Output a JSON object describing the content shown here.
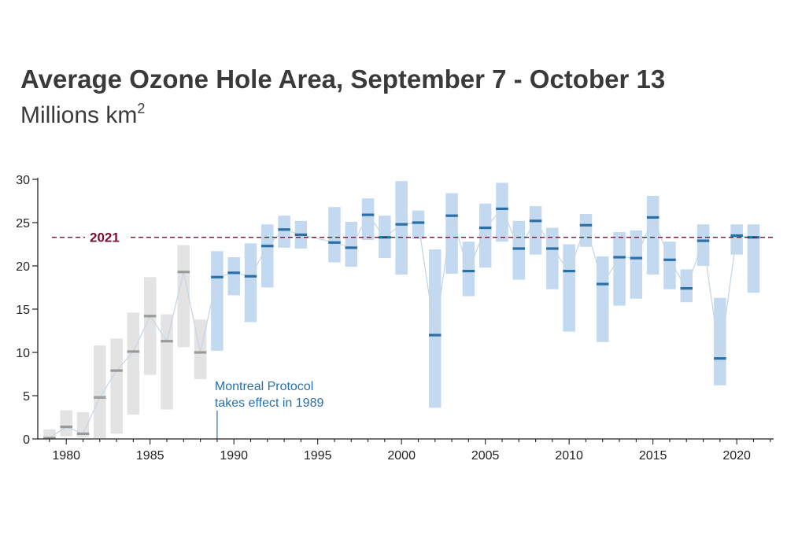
{
  "title": "Average Ozone Hole Area, September 7 - October 13",
  "subtitle_text": "Millions km",
  "subtitle_sup": "2",
  "colors": {
    "pre_fill": "#e3e3e3",
    "pre_mean": "#9a9a9a",
    "post_fill": "#c3d9ef",
    "post_mean": "#2b6fa8",
    "line": "#c8d6e4",
    "ref": "#7a1030",
    "annot": "#2b6fa8"
  },
  "chart_data": {
    "type": "bar",
    "title": "Average Ozone Hole Area, September 7 - October 13",
    "ylabel": "Millions km²",
    "xlim": [
      1978.3,
      2022.2
    ],
    "ylim": [
      0,
      30
    ],
    "x_ticks": [
      1980,
      1985,
      1990,
      1995,
      2000,
      2005,
      2010,
      2015,
      2020
    ],
    "y_ticks": [
      0,
      5,
      10,
      15,
      20,
      25,
      30
    ],
    "grid": false,
    "reference_line": {
      "label": "2021",
      "value": 23.3
    },
    "annotation": {
      "lines": [
        "Montreal Protocol",
        "takes effect in 1989"
      ],
      "year": 1989
    },
    "protocol_year": 1989,
    "series": [
      {
        "name": "",
        "unit": "range (min, mean, max)",
        "data": [
          {
            "year": 1979,
            "min": 0,
            "max": 1.1,
            "mean": 0.1
          },
          {
            "year": 1980,
            "min": 0.3,
            "max": 3.3,
            "mean": 1.4
          },
          {
            "year": 1981,
            "min": 0.2,
            "max": 3.1,
            "mean": 0.6
          },
          {
            "year": 1982,
            "min": 0.1,
            "max": 10.8,
            "mean": 4.8
          },
          {
            "year": 1983,
            "min": 0.6,
            "max": 11.6,
            "mean": 7.9
          },
          {
            "year": 1984,
            "min": 2.8,
            "max": 14.6,
            "mean": 10.1
          },
          {
            "year": 1985,
            "min": 7.4,
            "max": 18.7,
            "mean": 14.2
          },
          {
            "year": 1986,
            "min": 3.4,
            "max": 14.4,
            "mean": 11.3
          },
          {
            "year": 1987,
            "min": 10.6,
            "max": 22.4,
            "mean": 19.3
          },
          {
            "year": 1988,
            "min": 6.9,
            "max": 13.8,
            "mean": 10.0
          },
          {
            "year": 1989,
            "min": 10.2,
            "max": 21.7,
            "mean": 18.7
          },
          {
            "year": 1990,
            "min": 16.6,
            "max": 21.0,
            "mean": 19.2
          },
          {
            "year": 1991,
            "min": 13.5,
            "max": 22.6,
            "mean": 18.8
          },
          {
            "year": 1992,
            "min": 17.5,
            "max": 24.8,
            "mean": 22.3
          },
          {
            "year": 1993,
            "min": 22.1,
            "max": 25.8,
            "mean": 24.2
          },
          {
            "year": 1994,
            "min": 22.0,
            "max": 25.2,
            "mean": 23.6
          },
          {
            "year": 1996,
            "min": 20.4,
            "max": 26.8,
            "mean": 22.7
          },
          {
            "year": 1997,
            "min": 19.9,
            "max": 25.1,
            "mean": 22.1
          },
          {
            "year": 1998,
            "min": 23.0,
            "max": 27.8,
            "mean": 25.9
          },
          {
            "year": 1999,
            "min": 20.9,
            "max": 25.8,
            "mean": 23.3
          },
          {
            "year": 2000,
            "min": 19.0,
            "max": 29.8,
            "mean": 24.8
          },
          {
            "year": 2001,
            "min": 23.1,
            "max": 26.4,
            "mean": 25.0
          },
          {
            "year": 2002,
            "min": 3.6,
            "max": 21.9,
            "mean": 12.0
          },
          {
            "year": 2003,
            "min": 19.1,
            "max": 28.4,
            "mean": 25.8
          },
          {
            "year": 2004,
            "min": 16.5,
            "max": 22.8,
            "mean": 19.4
          },
          {
            "year": 2005,
            "min": 19.8,
            "max": 27.2,
            "mean": 24.4
          },
          {
            "year": 2006,
            "min": 22.8,
            "max": 29.6,
            "mean": 26.6
          },
          {
            "year": 2007,
            "min": 18.4,
            "max": 25.2,
            "mean": 22.0
          },
          {
            "year": 2008,
            "min": 21.3,
            "max": 26.9,
            "mean": 25.2
          },
          {
            "year": 2009,
            "min": 17.3,
            "max": 24.4,
            "mean": 22.0
          },
          {
            "year": 2010,
            "min": 12.4,
            "max": 22.5,
            "mean": 19.4
          },
          {
            "year": 2011,
            "min": 22.2,
            "max": 26.0,
            "mean": 24.7
          },
          {
            "year": 2012,
            "min": 11.2,
            "max": 21.1,
            "mean": 17.9
          },
          {
            "year": 2013,
            "min": 15.4,
            "max": 23.9,
            "mean": 21.0
          },
          {
            "year": 2014,
            "min": 16.2,
            "max": 24.1,
            "mean": 20.9
          },
          {
            "year": 2015,
            "min": 19.0,
            "max": 28.1,
            "mean": 25.6
          },
          {
            "year": 2016,
            "min": 17.3,
            "max": 22.8,
            "mean": 20.7
          },
          {
            "year": 2017,
            "min": 15.8,
            "max": 19.6,
            "mean": 17.4
          },
          {
            "year": 2018,
            "min": 20.0,
            "max": 24.8,
            "mean": 22.9
          },
          {
            "year": 2019,
            "min": 6.2,
            "max": 16.3,
            "mean": 9.3
          },
          {
            "year": 2020,
            "min": 21.3,
            "max": 24.8,
            "mean": 23.5
          },
          {
            "year": 2021,
            "min": 16.9,
            "max": 24.8,
            "mean": 23.3
          }
        ]
      }
    ]
  }
}
